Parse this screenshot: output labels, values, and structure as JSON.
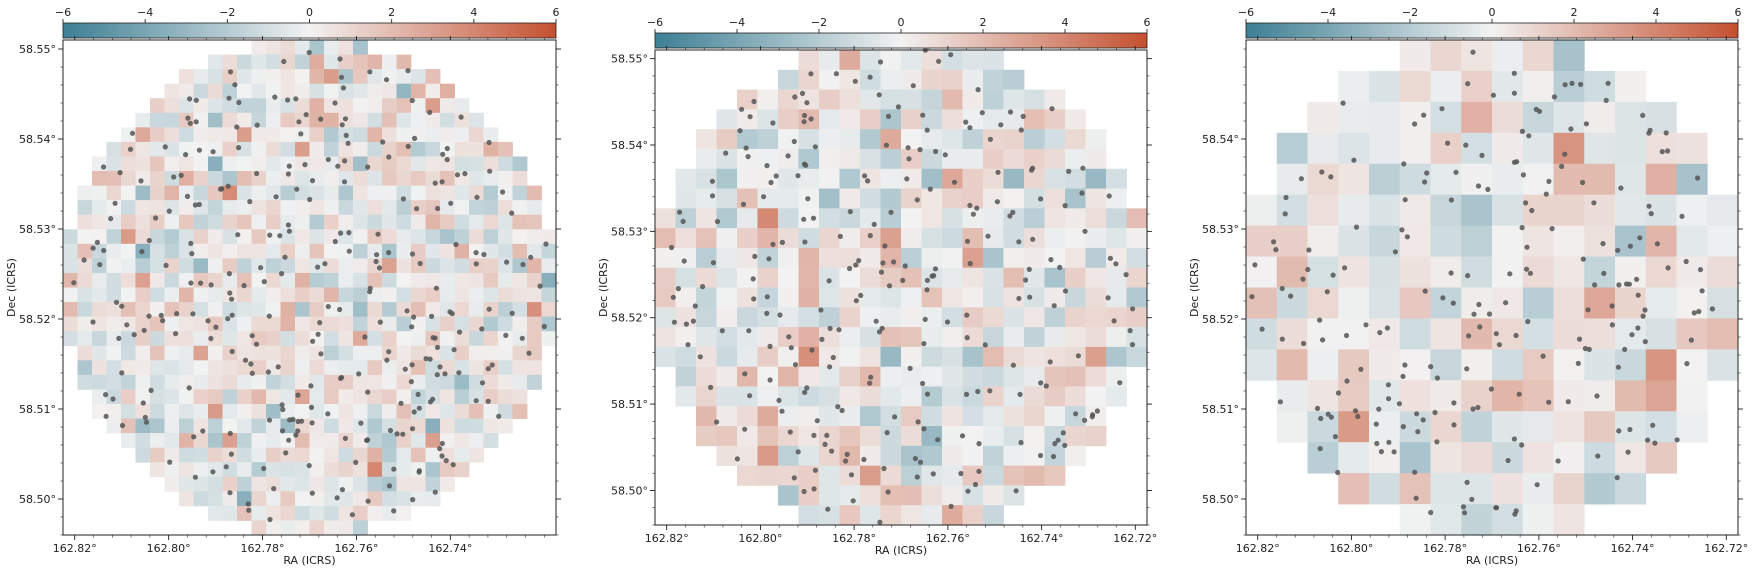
{
  "figure": {
    "colormap": {
      "low": "#3d7f94",
      "mid": "#f2f2f2",
      "high": "#c4502f"
    },
    "dot_color": "#555555",
    "grid": false
  },
  "chart_data": [
    {
      "type": "heatmap",
      "title": "",
      "xlabel": "RA (ICRS)",
      "ylabel": "Dec (ICRS)",
      "xlim": [
        162.8225,
        162.7175
      ],
      "ylim": [
        58.496,
        58.551
      ],
      "x_ticks": [
        162.82,
        162.8,
        162.78,
        162.76,
        162.74
      ],
      "x_tick_labels": [
        "162.82°",
        "162.80°",
        "162.78°",
        "162.76°",
        "162.74°"
      ],
      "y_ticks": [
        58.5,
        58.51,
        58.52,
        58.53,
        58.54,
        58.55
      ],
      "y_tick_labels": [
        "58.50°",
        "58.51°",
        "58.52°",
        "58.53°",
        "58.54°",
        "58.55°"
      ],
      "colorbar": {
        "range": [
          -6,
          6
        ],
        "ticks": [
          -6,
          -4,
          -2,
          0,
          2,
          4,
          6
        ],
        "tick_labels": [
          "−6",
          "−4",
          "−2",
          "0",
          "2",
          "4",
          "6"
        ],
        "position": "top"
      },
      "grid_shape": [
        34,
        34
      ],
      "footprint": "circle",
      "value_range": [
        -3.5,
        4.0
      ],
      "num_sources": 290
    },
    {
      "type": "heatmap",
      "title": "",
      "xlabel": "RA (ICRS)",
      "ylabel": "Dec (ICRS)",
      "xlim": [
        162.8225,
        162.7175
      ],
      "ylim": [
        58.496,
        58.551
      ],
      "x_ticks": [
        162.82,
        162.8,
        162.78,
        162.76,
        162.74,
        162.72
      ],
      "x_tick_labels": [
        "162.82°",
        "162.80°",
        "162.78°",
        "162.76°",
        "162.74°",
        "162.72°"
      ],
      "y_ticks": [
        58.5,
        58.51,
        58.52,
        58.53,
        58.54,
        58.55
      ],
      "y_tick_labels": [
        "58.50°",
        "58.51°",
        "58.52°",
        "58.53°",
        "58.54°",
        "58.55°"
      ],
      "colorbar": {
        "range": [
          -6,
          6
        ],
        "ticks": [
          -6,
          -4,
          -2,
          0,
          2,
          4,
          6
        ],
        "tick_labels": [
          "−6",
          "−4",
          "−2",
          "0",
          "2",
          "4",
          "6"
        ],
        "position": "top"
      },
      "grid_shape": [
        24,
        24
      ],
      "footprint": "circle",
      "value_range": [
        -3.0,
        6.0
      ],
      "num_sources": 250
    },
    {
      "type": "heatmap",
      "title": "",
      "xlabel": "RA (ICRS)",
      "ylabel": "Dec (ICRS)",
      "xlim": [
        162.8225,
        162.7175
      ],
      "ylim": [
        58.496,
        58.551
      ],
      "x_ticks": [
        162.82,
        162.8,
        162.78,
        162.76,
        162.74,
        162.72
      ],
      "x_tick_labels": [
        "162.82°",
        "162.80°",
        "162.78°",
        "162.76°",
        "162.74°",
        "162.72°"
      ],
      "y_ticks": [
        58.5,
        58.51,
        58.52,
        58.53,
        58.54
      ],
      "y_tick_labels": [
        "58.50°",
        "58.51°",
        "58.52°",
        "58.53°",
        "58.54°"
      ],
      "colorbar": {
        "range": [
          -6,
          6
        ],
        "ticks": [
          -6,
          -4,
          -2,
          0,
          2,
          4,
          6
        ],
        "tick_labels": [
          "−6",
          "−4",
          "−2",
          "0",
          "2",
          "4",
          "6"
        ],
        "position": "top"
      },
      "grid_shape": [
        16,
        16
      ],
      "footprint": "circle",
      "value_range": [
        -2.5,
        3.5
      ],
      "num_sources": 210
    }
  ]
}
